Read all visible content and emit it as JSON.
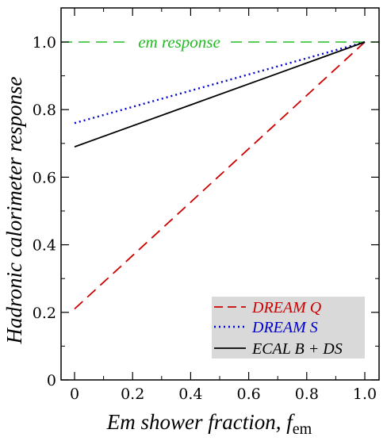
{
  "chart_data": {
    "type": "line",
    "xlabel": {
      "main": "Em shower fraction, ",
      "var": "f",
      "sub": "em"
    },
    "ylabel": "Hadronic calorimeter response",
    "xlim": [
      0,
      1.0
    ],
    "ylim": [
      0,
      1.1
    ],
    "x_ticks": [
      0,
      0.2,
      0.4,
      0.6,
      0.8,
      1.0
    ],
    "x_tick_labels": [
      "0",
      "0.2",
      "0.4",
      "0.6",
      "0.8",
      "1.0"
    ],
    "y_ticks": [
      0,
      0.2,
      0.4,
      0.6,
      0.8,
      1.0
    ],
    "y_tick_labels": [
      "0",
      "0.2",
      "0.4",
      "0.6",
      "0.8",
      "1.0"
    ],
    "grid": false,
    "legend_position": "bottom-right",
    "series": [
      {
        "name": "DREAM Q",
        "x": [
          0,
          1.0
        ],
        "y": [
          0.21,
          1.0
        ],
        "color": "#cc0000",
        "style": "dashed"
      },
      {
        "name": "DREAM S",
        "x": [
          0,
          1.0
        ],
        "y": [
          0.76,
          1.0
        ],
        "color": "#0000cc",
        "style": "dotted"
      },
      {
        "name": "ECAL B + DS",
        "x": [
          0,
          1.0
        ],
        "y": [
          0.69,
          1.0
        ],
        "color": "#000000",
        "style": "solid"
      }
    ],
    "reference_line": {
      "label": "em response",
      "y": 1.0,
      "color": "#22bb22",
      "style": "dashed"
    }
  }
}
